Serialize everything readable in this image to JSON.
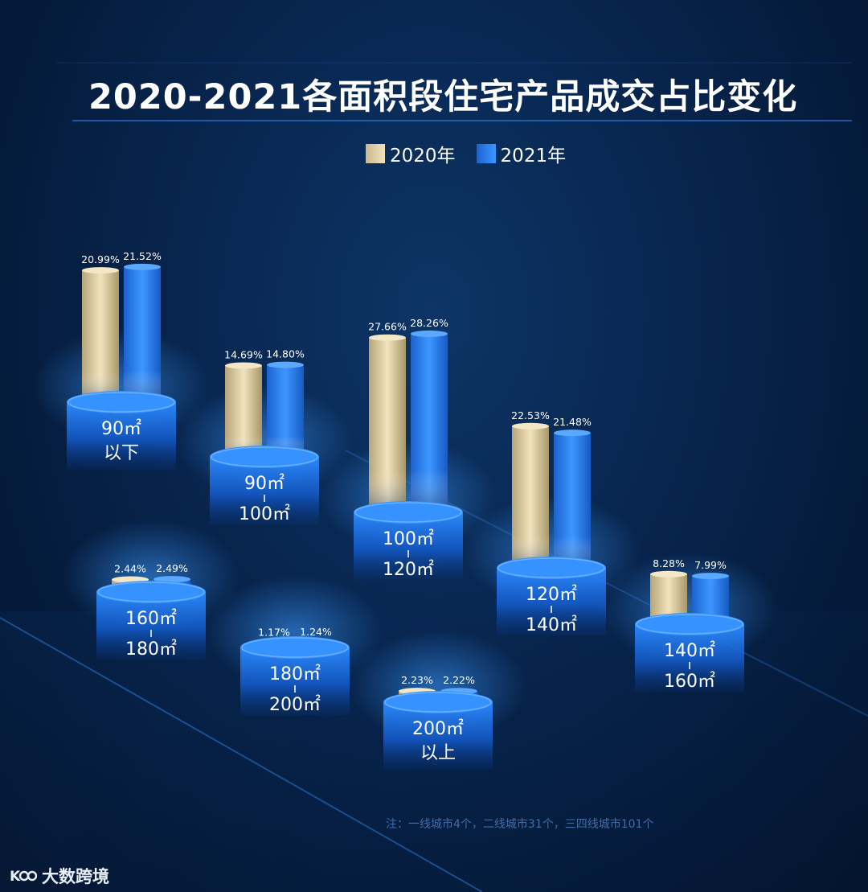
{
  "title": "2020-2021各面积段住宅产品成交占比变化",
  "legend": [
    {
      "label": "2020年",
      "color": "#e6d5a8"
    },
    {
      "label": "2021年",
      "color": "#2f86f0"
    }
  ],
  "footnote": "注：一线城市4个，二线城市31个，三四线城市101个",
  "watermark": "大数跨境",
  "chart_data": {
    "type": "bar",
    "title": "2020-2021各面积段住宅产品成交占比变化",
    "xlabel": "",
    "ylabel": "",
    "series": [
      {
        "name": "2020年",
        "values": [
          20.99,
          14.69,
          27.66,
          22.53,
          8.28,
          2.44,
          1.17,
          2.23
        ]
      },
      {
        "name": "2021年",
        "values": [
          21.52,
          14.8,
          28.26,
          21.48,
          7.99,
          2.49,
          1.24,
          2.22
        ]
      }
    ],
    "categories": [
      [
        "90㎡",
        "以下"
      ],
      [
        "90㎡",
        "100㎡"
      ],
      [
        "100㎡",
        "120㎡"
      ],
      [
        "120㎡",
        "140㎡"
      ],
      [
        "140㎡",
        "160㎡"
      ],
      [
        "160㎡",
        "180㎡"
      ],
      [
        "180㎡",
        "200㎡"
      ],
      [
        "200㎡",
        "以上"
      ]
    ],
    "value_labels": {
      "2020年": [
        "20.99%",
        "14.69%",
        "27.66%",
        "22.53%",
        "8.28%",
        "2.44%",
        "1.17%",
        "2.23%"
      ],
      "2021年": [
        "21.52%",
        "14.80%",
        "28.26%",
        "21.48%",
        "7.99%",
        "2.49%",
        "1.24%",
        "2.22%"
      ]
    },
    "legend_position": "top-center",
    "grid": false
  }
}
